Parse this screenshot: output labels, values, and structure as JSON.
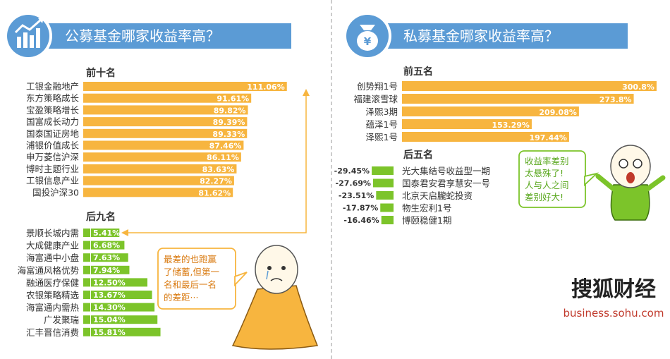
{
  "left": {
    "title": "公募基金哪家收益率高？",
    "top_label": "前十名",
    "bottom_label": "后九名",
    "bubble": [
      "最差的也跑赢",
      "了储蓄,但第一",
      "名和最后一名",
      "的差距···"
    ]
  },
  "right": {
    "title": "私募基金哪家收益率高？",
    "top_label": "前五名",
    "bottom_label": "后五名",
    "bubble": [
      "收益率差别",
      "太悬殊了!",
      "人与人之间",
      "差别好大!"
    ]
  },
  "brand": {
    "name": "搜狐财经",
    "url": "business.sohu.com"
  },
  "colors": {
    "title_bar": "#5b9bd5",
    "bar_orange": "#f7b53f",
    "bar_green": "#7cc42a",
    "text": "#333333"
  },
  "chart_data": [
    {
      "type": "bar",
      "title": "公募基金哪家收益率高？",
      "subtitle": "前十名",
      "orientation": "horizontal",
      "categories": [
        "工银金融地产",
        "东方策略成长",
        "宝盈策略增长",
        "国富成长动力",
        "国泰国证房地",
        "浦银价值成长",
        "申万菱信沪深",
        "博时主题行业",
        "工银信息产业",
        "国投沪深30"
      ],
      "values": [
        111.06,
        91.61,
        89.82,
        89.39,
        89.33,
        87.46,
        86.11,
        83.63,
        82.27,
        81.62
      ],
      "labels": [
        "111.06%",
        "91.61%",
        "89.82%",
        "89.39%",
        "89.33%",
        "87.46%",
        "86.11%",
        "83.63%",
        "82.27%",
        "81.62%"
      ],
      "unit": "%"
    },
    {
      "type": "bar",
      "title": "公募基金哪家收益率高？",
      "subtitle": "后九名",
      "orientation": "horizontal",
      "categories": [
        "景顺长城内需",
        "大成健康产业",
        "海富通中小盘",
        "海富通风格优势",
        "融通医疗保健",
        "农银策略精选",
        "海富通内需热",
        "广发聚瑞",
        "汇丰晋信消费"
      ],
      "values": [
        5.41,
        6.68,
        7.63,
        7.94,
        12.5,
        13.67,
        14.3,
        15.04,
        15.81
      ],
      "labels": [
        "5.41%",
        "6.68%",
        "7.63%",
        "7.94%",
        "12.50%",
        "13.67%",
        "14.30%",
        "15.04%",
        "15.81%"
      ],
      "unit": "%"
    },
    {
      "type": "bar",
      "title": "私募基金哪家收益率高？",
      "subtitle": "前五名",
      "orientation": "horizontal",
      "categories": [
        "创势翔1号",
        "福建滚雪球",
        "泽熙3期",
        "蕴泽1号",
        "泽熙1号"
      ],
      "values": [
        300.8,
        273.8,
        209.08,
        153.29,
        197.44
      ],
      "labels": [
        "300.8%",
        "273.8%",
        "209.08%",
        "153.29%",
        "197.44%"
      ],
      "unit": "%"
    },
    {
      "type": "bar",
      "title": "私募基金哪家收益率高？",
      "subtitle": "后五名",
      "orientation": "horizontal",
      "categories": [
        "光大集结号收益型一期",
        "国泰君安君享慧安一号",
        "北京天启朧蛇投资",
        "物生宏利1号",
        "博颐稳健1期"
      ],
      "values": [
        -29.45,
        -27.69,
        -23.51,
        -17.87,
        -16.46
      ],
      "labels": [
        "-29.45%",
        "-27.69%",
        "-23.51%",
        "-17.87%",
        "-16.46%"
      ],
      "unit": "%"
    }
  ]
}
